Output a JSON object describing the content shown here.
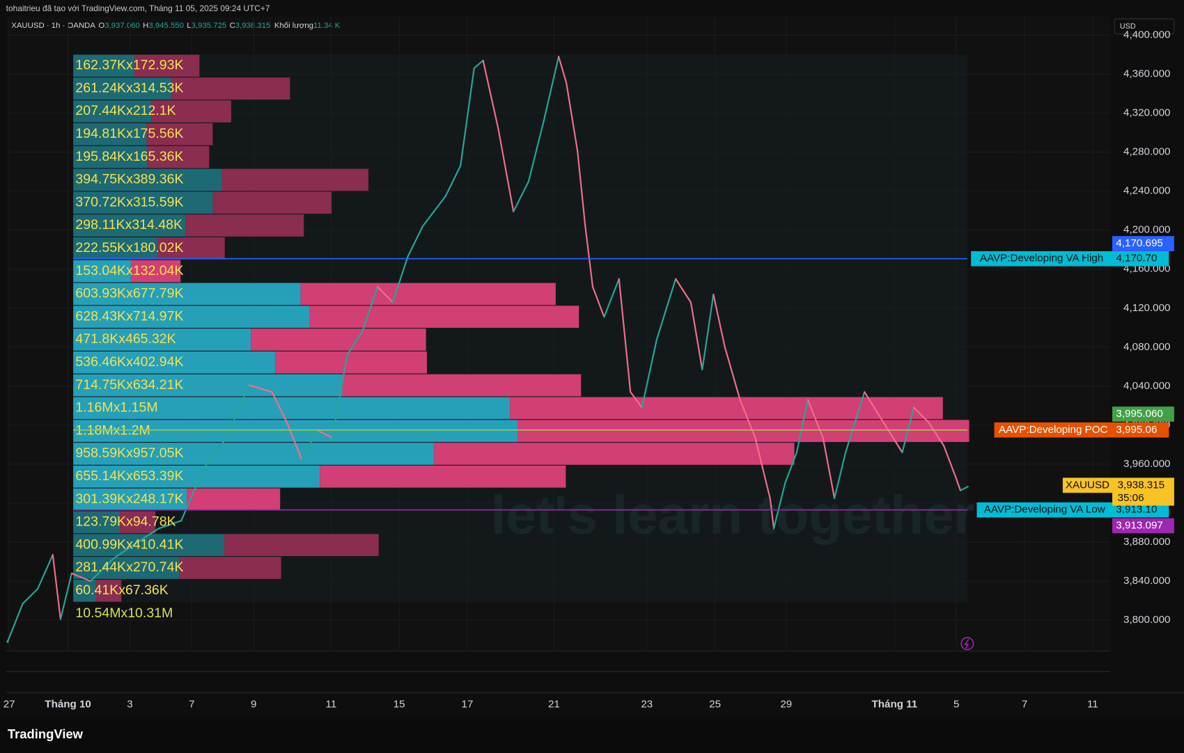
{
  "chart_data": {
    "type": "candle-profile",
    "header": "tohaitrieu đã tạo với TradingView.com, Tháng 11 05, 2025 09:24 UTC+7",
    "symbol": "XAUUSD · 1h · OANDA",
    "ohlc": [
      {
        "key": "O",
        "value": "3,937.060"
      },
      {
        "key": "H",
        "value": "3,945.550"
      },
      {
        "key": "L",
        "value": "3,935.725"
      },
      {
        "key": "C",
        "value": "3,938.315"
      }
    ],
    "volume_label": "Khối lượng",
    "volume_value": "11.34 K",
    "currency": "USD",
    "brand": "TradingView",
    "watermark": "let's learn together",
    "ylim": [
      3769,
      4419
    ],
    "yticks": [
      {
        "value": 3800,
        "label": "3,800.000"
      },
      {
        "value": 3840,
        "label": "3,840.000"
      },
      {
        "value": 3880,
        "label": "3,880.000"
      },
      {
        "value": 3920,
        "label": "3,920.000"
      },
      {
        "value": 3960,
        "label": "3,960.000"
      },
      {
        "value": 4000,
        "label": "4,000.000"
      },
      {
        "value": 4040,
        "label": "4,040.000"
      },
      {
        "value": 4080,
        "label": "4,080.000"
      },
      {
        "value": 4120,
        "label": "4,120.000"
      },
      {
        "value": 4160,
        "label": "4,160.000"
      },
      {
        "value": 4200,
        "label": "4,200.000"
      },
      {
        "value": 4240,
        "label": "4,240.000"
      },
      {
        "value": 4280,
        "label": "4,280.000"
      },
      {
        "value": 4320,
        "label": "4,320.000"
      },
      {
        "value": 4360,
        "label": "4,360.000"
      },
      {
        "value": 4400,
        "label": "4,400.000"
      }
    ],
    "xlim": [
      0,
      35.66
    ],
    "xticks": [
      {
        "value": 0.1,
        "label": "27"
      },
      {
        "value": 2.0,
        "label": "Tháng 10"
      },
      {
        "value": 4.0,
        "label": "3"
      },
      {
        "value": 6.0,
        "label": "7"
      },
      {
        "value": 8.0,
        "label": "9"
      },
      {
        "value": 10.5,
        "label": "11"
      },
      {
        "value": 12.7,
        "label": "15"
      },
      {
        "value": 14.9,
        "label": "17"
      },
      {
        "value": 17.7,
        "label": "21"
      },
      {
        "value": 20.7,
        "label": "23"
      },
      {
        "value": 22.9,
        "label": "25"
      },
      {
        "value": 25.2,
        "label": "29"
      },
      {
        "value": 28.7,
        "label": "Tháng 11"
      },
      {
        "value": 30.7,
        "label": "5"
      },
      {
        "value": 32.9,
        "label": "7"
      },
      {
        "value": 35.1,
        "label": "11"
      }
    ],
    "grid": true,
    "up_color": "#26a69a",
    "down_color": "#ef6f8a",
    "x": [
      0.05,
      0.54,
      1.02,
      1.51,
      1.76,
      2.12,
      2.73,
      3.46,
      4.2,
      4.93,
      5.66,
      6.39,
      7.12,
      7.85,
      8.59,
      9.07,
      9.56,
      10.05,
      10.54,
      11.02,
      11.51,
      12.0,
      12.49,
      12.98,
      13.46,
      14.2,
      14.68,
      15.12,
      15.41,
      15.9,
      16.39,
      16.88,
      17.37,
      17.85,
      18.1,
      18.46,
      18.71,
      18.95,
      19.32,
      19.8,
      20.17,
      20.54,
      21.02,
      21.63,
      22.12,
      22.49,
      22.85,
      23.22,
      23.71,
      24.2,
      24.68,
      24.8,
      25.17,
      25.54,
      25.9,
      26.39,
      26.76,
      27.12,
      27.73,
      28.34,
      28.95,
      29.32,
      29.8,
      30.29,
      30.66,
      30.83,
      31.07
    ],
    "values": [
      3778,
      3817,
      3832,
      3867,
      3801,
      3848,
      3840,
      3863,
      3879,
      3894,
      3902,
      3956,
      3987,
      4041,
      4034,
      4003,
      3964,
      3995,
      3987,
      4072,
      4096,
      4142,
      4126,
      4173,
      4204,
      4235,
      4266,
      4366,
      4374,
      4304,
      4219,
      4250,
      4312,
      4378,
      4351,
      4281,
      4204,
      4142,
      4111,
      4150,
      4034,
      4018,
      4088,
      4150,
      4126,
      4057,
      4134,
      4080,
      4026,
      3987,
      3925,
      3894,
      3941,
      3972,
      4026,
      3987,
      3925,
      3972,
      4034,
      4003,
      3972,
      4018,
      4003,
      3979,
      3948,
      3933,
      3937
    ],
    "profile": {
      "ylim": [
        3818.5,
        4380.3
      ],
      "xlim": [
        0,
        2375
      ],
      "up_color": "#26a0b8",
      "down_color": "#d23f74",
      "up_color_outside": "#1d6a75",
      "down_color_outside": "#8a2d50",
      "label_color": "#f5e050",
      "rows": [
        {
          "up": 162.37,
          "down": 172.93,
          "label": "162.37Kx172.93K"
        },
        {
          "up": 261.24,
          "down": 314.53,
          "label": "261.24Kx314.53K"
        },
        {
          "up": 207.44,
          "down": 212.1,
          "label": "207.44Kx212.1K"
        },
        {
          "up": 194.81,
          "down": 175.56,
          "label": "194.81Kx175.56K"
        },
        {
          "up": 195.84,
          "down": 165.36,
          "label": "195.84Kx165.36K"
        },
        {
          "up": 394.75,
          "down": 389.36,
          "label": "394.75Kx389.36K"
        },
        {
          "up": 370.72,
          "down": 315.59,
          "label": "370.72Kx315.59K"
        },
        {
          "up": 298.11,
          "down": 314.48,
          "label": "298.11Kx314.48K"
        },
        {
          "up": 222.55,
          "down": 180.02,
          "label": "222.55Kx180.02K"
        },
        {
          "up": 153.04,
          "down": 132.04,
          "label": "153.04Kx132.04K"
        },
        {
          "up": 603.93,
          "down": 677.79,
          "label": "603.93Kx677.79K"
        },
        {
          "up": 628.43,
          "down": 714.97,
          "label": "628.43Kx714.97K"
        },
        {
          "up": 471.8,
          "down": 465.32,
          "label": "471.8Kx465.32K"
        },
        {
          "up": 536.46,
          "down": 402.94,
          "label": "536.46Kx402.94K"
        },
        {
          "up": 714.75,
          "down": 634.21,
          "label": "714.75Kx634.21K"
        },
        {
          "up": 1160,
          "down": 1150,
          "label": "1.16Mx1.15M"
        },
        {
          "up": 1180,
          "down": 1200,
          "label": "1.18Mx1.2M"
        },
        {
          "up": 958.59,
          "down": 957.05,
          "label": "958.59Kx957.05K"
        },
        {
          "up": 655.14,
          "down": 653.39,
          "label": "655.14Kx653.39K"
        },
        {
          "up": 301.39,
          "down": 248.17,
          "label": "301.39Kx248.17K"
        },
        {
          "up": 123.79,
          "down": 94.78,
          "label": "123.79Kx94.78K"
        },
        {
          "up": 400.99,
          "down": 410.41,
          "label": "400.99Kx410.41K"
        },
        {
          "up": 281.44,
          "down": 270.74,
          "label": "281.44Kx270.74K"
        },
        {
          "up": 60.41,
          "down": 67.36,
          "label": "60.41Kx67.36K"
        }
      ],
      "total": {
        "up": 10540,
        "down": 10310,
        "label": "10.54Mx10.31M",
        "color": "#d4e157"
      }
    },
    "levels": [
      {
        "name": "AAVP:Developing VA High",
        "value": 4170.7,
        "value_label": "4,170.70",
        "color": "#00bcd4",
        "line_color": "#2962ff"
      },
      {
        "name": "AAVP:Developing POC",
        "value": 3995.06,
        "value_label": "3,995.06",
        "color": "#e65100",
        "line_color": "#9ccc3c"
      },
      {
        "name": "AAVP:Developing VA Low",
        "value": 3913.1,
        "value_label": "3,913.10",
        "color": "#00bcd4",
        "line_color": "#9c27b0"
      }
    ],
    "price_tags": [
      {
        "value": 4170.695,
        "label": "4,170.695",
        "color": "#2962ff"
      },
      {
        "value": 3995.06,
        "label": "3,995.060",
        "color": "#43a047"
      },
      {
        "value": 3913.097,
        "label": "3,913.097",
        "color": "#9c27b0"
      }
    ],
    "last_price": {
      "name": "XAUUSD",
      "value": 3938.315,
      "label": "3,938.315",
      "countdown": "35:06",
      "color": "#f7c325"
    }
  }
}
